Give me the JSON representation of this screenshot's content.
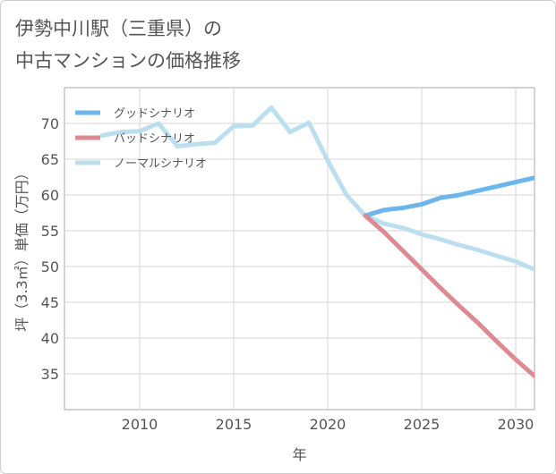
{
  "title_line1": "伊勢中川駅（三重県）の",
  "title_line2": "中古マンションの価格推移",
  "chart_data": {
    "type": "line",
    "xlabel": "年",
    "ylabel": "坪（3.3㎡）単価（万円）",
    "xlim": [
      2006,
      2031
    ],
    "ylim": [
      30,
      75
    ],
    "xticks": [
      2010,
      2015,
      2020,
      2025,
      2030
    ],
    "yticks": [
      35,
      40,
      45,
      50,
      55,
      60,
      65,
      70
    ],
    "grid": true,
    "legend_position": "top-left",
    "series": [
      {
        "name": "グッドシナリオ",
        "color": "#6cb6ee",
        "x": [
          2022,
          2023,
          2024,
          2025,
          2026,
          2027,
          2028,
          2029,
          2030,
          2031
        ],
        "y": [
          57.1,
          57.9,
          58.2,
          58.7,
          59.6,
          60.0,
          60.6,
          61.2,
          61.8,
          62.4
        ]
      },
      {
        "name": "バッドシナリオ",
        "color": "#dd8a93",
        "x": [
          2022,
          2023,
          2024,
          2025,
          2026,
          2027,
          2028,
          2029,
          2030,
          2031
        ],
        "y": [
          57.1,
          54.8,
          52.2,
          49.6,
          47.0,
          44.5,
          42.1,
          39.5,
          37.0,
          34.7
        ]
      },
      {
        "name": "ノーマルシナリオ",
        "color": "#bcdff0",
        "x": [
          2008,
          2009,
          2010,
          2011,
          2012,
          2013,
          2014,
          2015,
          2016,
          2017,
          2018,
          2019,
          2020,
          2021,
          2022,
          2023,
          2024,
          2025,
          2026,
          2027,
          2028,
          2029,
          2030,
          2031
        ],
        "y": [
          68.3,
          68.8,
          68.9,
          70.0,
          66.8,
          67.1,
          67.3,
          69.6,
          69.7,
          72.2,
          68.8,
          70.1,
          64.8,
          60.0,
          57.1,
          56.0,
          55.4,
          54.5,
          53.8,
          53.0,
          52.3,
          51.5,
          50.7,
          49.6
        ]
      }
    ]
  }
}
